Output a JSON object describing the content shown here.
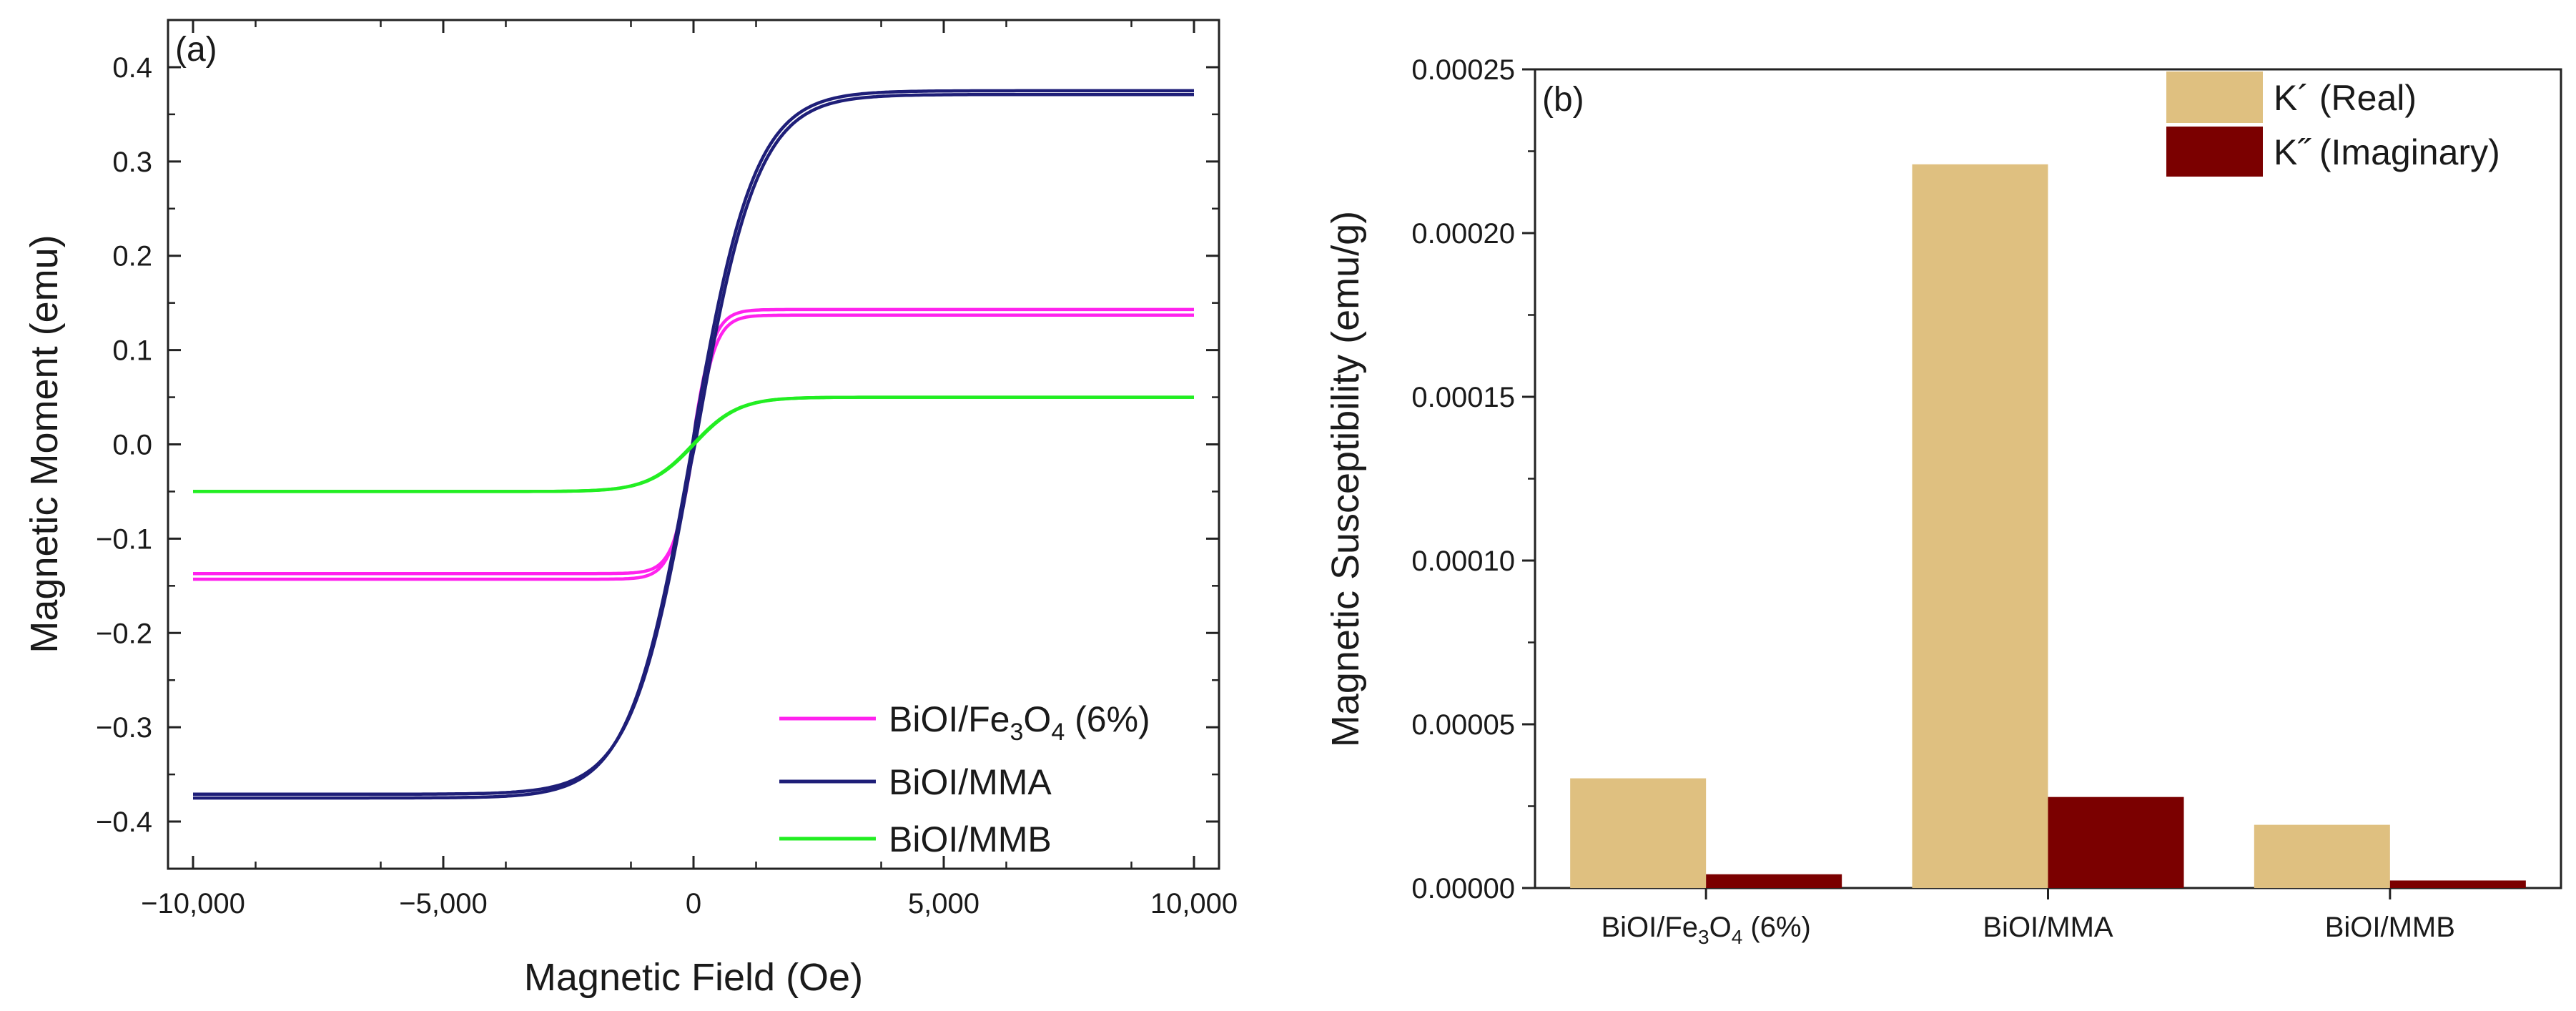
{
  "chart_data": [
    {
      "panel": "(a)",
      "type": "line",
      "xlabel": "Magnetic Field (Oe)",
      "ylabel": "Magnetic Moment (emu)",
      "xlim": [
        -10500,
        10500
      ],
      "ylim": [
        -0.45,
        0.45
      ],
      "xticks": [
        -10000,
        -5000,
        0,
        5000,
        10000
      ],
      "xtick_labels": [
        "−10,000",
        "−5,000",
        "0",
        "5,000",
        "10,000"
      ],
      "yticks": [
        -0.4,
        -0.3,
        -0.2,
        -0.1,
        0.0,
        0.1,
        0.2,
        0.3,
        0.4
      ],
      "ytick_labels": [
        "−0.4",
        "−0.3",
        "−0.2",
        "−0.1",
        "0.0",
        "0.1",
        "0.2",
        "0.3",
        "0.4"
      ],
      "legend_position": "bottom-right",
      "series": [
        {
          "name": "BiOI/Fe3O4 (6%)",
          "legend_main": "BiOI/Fe",
          "legend_sub1": "3",
          "legend_mid": "O",
          "legend_sub2": "4",
          "legend_tail": " (6%)",
          "color": "#ff22ee",
          "ms": 0.14,
          "hscale": 420,
          "coercivity": 20,
          "hysteresis_offset": 0.006
        },
        {
          "name": "BiOI/MMA",
          "legend_main": "BiOI/MMA",
          "color": "#1e1e78",
          "ms": 0.373,
          "hscale": 1250,
          "coercivity": 25,
          "hysteresis_offset": 0.004
        },
        {
          "name": "BiOI/MMB",
          "legend_main": "BiOI/MMB",
          "color": "#22ee22",
          "ms": 0.05,
          "hscale": 900,
          "coercivity": 10,
          "hysteresis_offset": 0.0
        }
      ]
    },
    {
      "panel": "(b)",
      "type": "bar",
      "ylabel": "Magnetic Susceptibility (emu/g)",
      "ylim": [
        0,
        0.00025
      ],
      "yticks": [
        0,
        5e-05,
        0.0001,
        0.00015,
        0.0002,
        0.00025
      ],
      "ytick_labels": [
        "0.00000",
        "0.00005",
        "0.00010",
        "0.00015",
        "0.00020",
        "0.00025"
      ],
      "categories": [
        {
          "label": "BiOI/Fe3O4 (6%)",
          "main": "BiOI/Fe",
          "sub1": "3",
          "mid": "O",
          "sub2": "4",
          "tail": " (6%)"
        },
        {
          "label": "BiOI/MMA",
          "main": "BiOI/MMA"
        },
        {
          "label": "BiOI/MMB",
          "main": "BiOI/MMB"
        }
      ],
      "legend_position": "top-right",
      "series": [
        {
          "name": "K´ (Real)",
          "color": "#dfc080",
          "values": [
            3.35e-05,
            0.000221,
            1.93e-05
          ]
        },
        {
          "name": "K˝ (Imaginary)",
          "color": "#7b0000",
          "values": [
            4.2e-06,
            2.78e-05,
            2.3e-06
          ]
        }
      ]
    }
  ]
}
